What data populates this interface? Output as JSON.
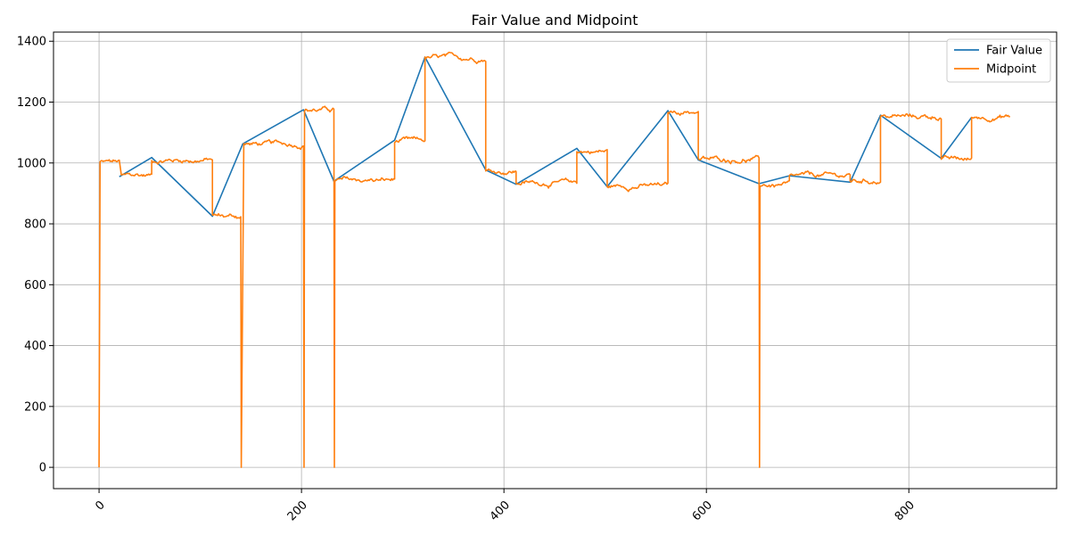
{
  "chart_data": {
    "type": "line",
    "title": "Fair Value and Midpoint",
    "xlabel": "",
    "ylabel": "",
    "xlim": [
      -45,
      946
    ],
    "ylim": [
      -70,
      1430
    ],
    "x_ticks": [
      0,
      200,
      400,
      600,
      800
    ],
    "y_ticks": [
      0,
      200,
      400,
      600,
      800,
      1000,
      1200,
      1400
    ],
    "x_tick_rotation": 45,
    "grid": true,
    "legend_position": "top-right",
    "series": [
      {
        "name": "Fair Value",
        "color": "#1f77b4",
        "points": [
          [
            20,
            955
          ],
          [
            52,
            1018
          ],
          [
            112,
            825
          ],
          [
            142,
            1063
          ],
          [
            202,
            1175
          ],
          [
            232,
            940
          ],
          [
            292,
            1075
          ],
          [
            322,
            1348
          ],
          [
            382,
            977
          ],
          [
            412,
            930
          ],
          [
            472,
            1048
          ],
          [
            502,
            922
          ],
          [
            562,
            1172
          ],
          [
            592,
            1010
          ],
          [
            652,
            932
          ],
          [
            682,
            958
          ],
          [
            742,
            937
          ],
          [
            772,
            1157
          ],
          [
            832,
            1015
          ],
          [
            862,
            1150
          ]
        ]
      },
      {
        "name": "Midpoint",
        "color": "#ff7f0e",
        "segments": [
          {
            "x0": 0,
            "x1": 1,
            "from": 0,
            "to": 990
          },
          {
            "x0": 1,
            "x1": 20,
            "level": 1003
          },
          {
            "x0": 22,
            "x1": 52,
            "level": 960
          },
          {
            "x0": 52,
            "x1": 112,
            "level": 1010
          },
          {
            "x0": 112,
            "x1": 140,
            "level": 825
          },
          {
            "x0": 140,
            "x1": 143,
            "dip": 0
          },
          {
            "x0": 143,
            "x1": 202,
            "level": 1062
          },
          {
            "x0": 202,
            "x1": 203,
            "dip": 0
          },
          {
            "x0": 203,
            "x1": 232,
            "level": 1175
          },
          {
            "x0": 232,
            "x1": 233,
            "dip": 0
          },
          {
            "x0": 233,
            "x1": 292,
            "level": 943
          },
          {
            "x0": 292,
            "x1": 322,
            "level": 1072
          },
          {
            "x0": 322,
            "x1": 382,
            "level": 1345
          },
          {
            "x0": 382,
            "x1": 412,
            "level": 972
          },
          {
            "x0": 412,
            "x1": 472,
            "level": 935
          },
          {
            "x0": 472,
            "x1": 502,
            "level": 1038
          },
          {
            "x0": 502,
            "x1": 562,
            "level": 925
          },
          {
            "x0": 562,
            "x1": 592,
            "level": 1170
          },
          {
            "x0": 592,
            "x1": 652,
            "level": 1012
          },
          {
            "x0": 652,
            "x1": 653,
            "dip": 0
          },
          {
            "x0": 653,
            "x1": 682,
            "level": 928
          },
          {
            "x0": 682,
            "x1": 742,
            "level": 958
          },
          {
            "x0": 742,
            "x1": 772,
            "level": 942
          },
          {
            "x0": 772,
            "x1": 832,
            "level": 1152
          },
          {
            "x0": 832,
            "x1": 862,
            "level": 1010
          },
          {
            "x0": 862,
            "x1": 900,
            "level": 1152
          }
        ]
      }
    ]
  }
}
